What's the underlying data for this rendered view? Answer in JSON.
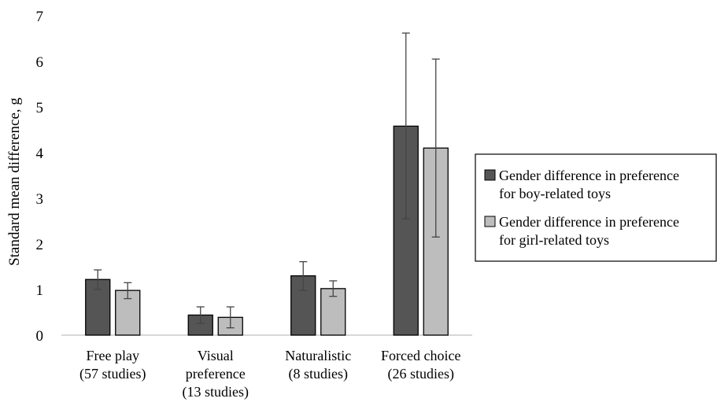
{
  "chart_data": {
    "type": "bar",
    "ylabel": "Standard mean difference, g",
    "ylim": [
      0,
      7
    ],
    "yticks": [
      "0",
      "1",
      "2",
      "3",
      "4",
      "5",
      "6",
      "7"
    ],
    "grid": false,
    "legend_position": "right",
    "categories": [
      [
        "Free play",
        "(57 studies)"
      ],
      [
        "Visual",
        "preference",
        "(13 studies)"
      ],
      [
        "Naturalistic",
        "(8 studies)"
      ],
      [
        "Forced choice",
        "(26 studies)"
      ]
    ],
    "series": [
      {
        "name": [
          "Gender difference in preference",
          "for boy-related toys"
        ],
        "color": "#555555",
        "values": [
          1.22,
          0.44,
          1.3,
          4.58
        ],
        "error_low": [
          1.0,
          0.26,
          0.98,
          2.55
        ],
        "error_high": [
          1.43,
          0.62,
          1.61,
          6.62
        ]
      },
      {
        "name": [
          "Gender difference in preference",
          "for girl-related toys"
        ],
        "color": "#bdbdbd",
        "values": [
          0.98,
          0.39,
          1.02,
          4.1
        ],
        "error_low": [
          0.8,
          0.16,
          0.85,
          2.15
        ],
        "error_high": [
          1.15,
          0.62,
          1.19,
          6.05
        ]
      }
    ]
  }
}
